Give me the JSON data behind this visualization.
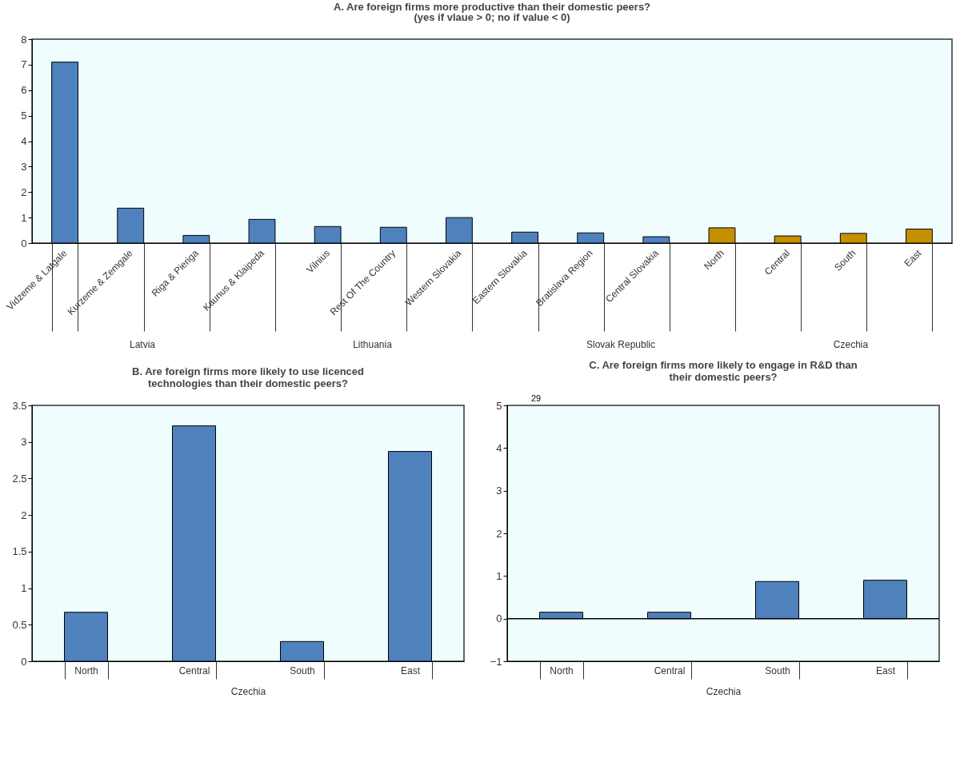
{
  "chart_data": [
    {
      "type": "bar",
      "title": "A. Are foreign firms more productive than their domestic peers?",
      "subtitle": "(yes if vlaue > 0; no if value < 0)",
      "categories": [
        "Vidzeme & Latgale",
        "Kurzeme & Zemgale",
        "Riga & Pieriga",
        "Kaunus & Klaipeda",
        "Vilnius",
        "Rest Of The Country",
        "Western Slovakia",
        "Eastern Slovakia",
        "Bratislava Region",
        "Central Slovakia",
        "North",
        "Central",
        "South",
        "East"
      ],
      "values": [
        7.1,
        1.37,
        0.3,
        0.93,
        0.65,
        0.62,
        1.0,
        0.43,
        0.4,
        0.25,
        0.6,
        0.28,
        0.38,
        0.55
      ],
      "colors": [
        "#4f81bd",
        "#4f81bd",
        "#4f81bd",
        "#4f81bd",
        "#4f81bd",
        "#4f81bd",
        "#4f81bd",
        "#4f81bd",
        "#4f81bd",
        "#4f81bd",
        "#c49000",
        "#c49000",
        "#c49000",
        "#c49000"
      ],
      "ylim": [
        0,
        8
      ],
      "yticks": [
        0,
        1,
        2,
        3,
        4,
        5,
        6,
        7,
        8
      ],
      "annotations": [
        "Latvia",
        "Lithuania",
        "Slovak Republic",
        "Czechia"
      ]
    },
    {
      "type": "bar",
      "title": "B. Are foreign firms more likely to use licenced technologies than their domestic peers?",
      "xlabel": "Czechia",
      "categories": [
        "North",
        "Central",
        "South",
        "East"
      ],
      "values": [
        0.67,
        3.22,
        0.27,
        2.87
      ],
      "colors": [
        "#4f81bd",
        "#4f81bd",
        "#4f81bd",
        "#4f81bd"
      ],
      "ylim": [
        0,
        3.5
      ],
      "yticks": [
        0,
        0.5,
        1,
        1.5,
        2,
        2.5,
        3,
        3.5
      ]
    },
    {
      "type": "bar",
      "title": "C. Are foreign firms more likely to engage in R&D than their domestic peers?",
      "xlabel": "Czechia",
      "categories": [
        "North",
        "Central",
        "South",
        "East"
      ],
      "values": [
        0.15,
        0.15,
        0.87,
        0.9
      ],
      "colors": [
        "#4f81bd",
        "#4f81bd",
        "#4f81bd",
        "#4f81bd"
      ],
      "ylim": [
        -1,
        5
      ],
      "yticks": [
        -1,
        0,
        1,
        2,
        3,
        4,
        5
      ],
      "ref_lines": [
        {
          "axis": "y",
          "value": 0,
          "color": "#000000"
        }
      ],
      "annotations": [
        "29"
      ]
    }
  ]
}
